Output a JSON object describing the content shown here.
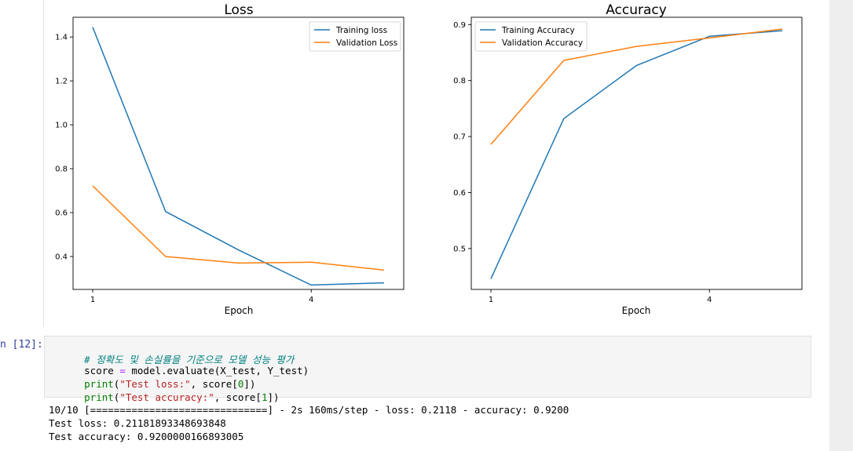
{
  "colors": {
    "series_blue": "#1f77b4",
    "series_orange": "#ff7f0e",
    "prompt": "#303f9f",
    "code_bg": "#f5f5f5"
  },
  "chart_data": [
    {
      "type": "line",
      "title": "Loss",
      "xlabel": "Epoch",
      "ylabel": "",
      "x": [
        1,
        2,
        3,
        4,
        5
      ],
      "xticks": [
        "1",
        "4"
      ],
      "yticks": [
        "0.4",
        "0.6",
        "0.8",
        "1.0",
        "1.2",
        "1.4"
      ],
      "ylim": [
        0.25,
        1.49
      ],
      "legend_position": "top-right",
      "grid": false,
      "series": [
        {
          "name": "Training loss",
          "values": [
            1.445,
            0.605,
            0.43,
            0.27,
            0.28
          ]
        },
        {
          "name": "Validation Loss",
          "values": [
            0.722,
            0.4,
            0.37,
            0.374,
            0.338
          ]
        }
      ]
    },
    {
      "type": "line",
      "title": "Accuracy",
      "xlabel": "Epoch",
      "ylabel": "",
      "x": [
        1,
        2,
        3,
        4,
        5
      ],
      "xticks": [
        "1",
        "4"
      ],
      "yticks": [
        "0.5",
        "0.6",
        "0.7",
        "0.8",
        "0.9"
      ],
      "ylim": [
        0.427,
        0.913
      ],
      "legend_position": "top-left",
      "grid": false,
      "series": [
        {
          "name": "Training Accuracy",
          "values": [
            0.446,
            0.732,
            0.827,
            0.879,
            0.889
          ]
        },
        {
          "name": "Validation Accuracy",
          "values": [
            0.686,
            0.836,
            0.861,
            0.876,
            0.892
          ]
        }
      ]
    }
  ],
  "input_cell": {
    "prompt": "n [12]:",
    "comment": "# 정확도 및 손실률을 기준으로 모델 성능 평가",
    "line2": {
      "var": "score",
      "op": " = ",
      "rest": "model.evaluate(X_test, Y_test)"
    },
    "line3": {
      "func": "print",
      "open": "(",
      "str": "\"Test loss:\"",
      "mid": ", score[",
      "num": "0",
      "close": "])"
    },
    "line4": {
      "func": "print",
      "open": "(",
      "str": "\"Test accuracy:\"",
      "mid": ", score[",
      "num": "1",
      "close": "])"
    }
  },
  "output": {
    "line1": "10/10 [==============================] - 2s 160ms/step - loss: 0.2118 - accuracy: 0.9200",
    "line2": "Test loss: 0.21181893348693848",
    "line3": "Test accuracy: 0.9200000166893005"
  }
}
